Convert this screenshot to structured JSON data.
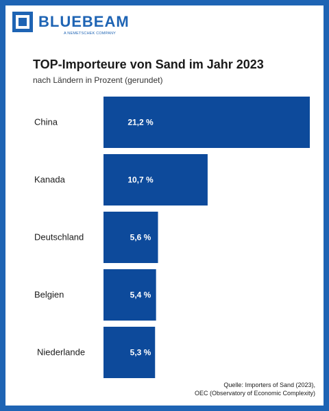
{
  "brand": {
    "name": "BLUEBEAM",
    "tagline": "A NEMETSCHEK COMPANY"
  },
  "colors": {
    "frame": "#1e64b4",
    "bar": "#0d4a9b",
    "bar_label": "#ffffff",
    "category_label": "#1a1a1a"
  },
  "chart_data": {
    "type": "bar",
    "orientation": "horizontal",
    "title": "TOP-Importeure von Sand im Jahr 2023",
    "subtitle": "nach Ländern in Prozent (gerundet)",
    "categories": [
      "China",
      "Kanada",
      "Deutschland",
      "Belgien",
      "Niederlande"
    ],
    "values": [
      21.2,
      10.7,
      5.6,
      5.4,
      5.3
    ],
    "value_labels": [
      "21,2 %",
      "10,7 %",
      "5,6 %",
      "5,4 %",
      "5,3 %"
    ],
    "unit": "%",
    "grid": false,
    "legend": "none"
  },
  "source": {
    "line1": "Quelle: Importers of Sand (2023),",
    "line2": "OEC (Observatory of Economic Complexity)"
  }
}
